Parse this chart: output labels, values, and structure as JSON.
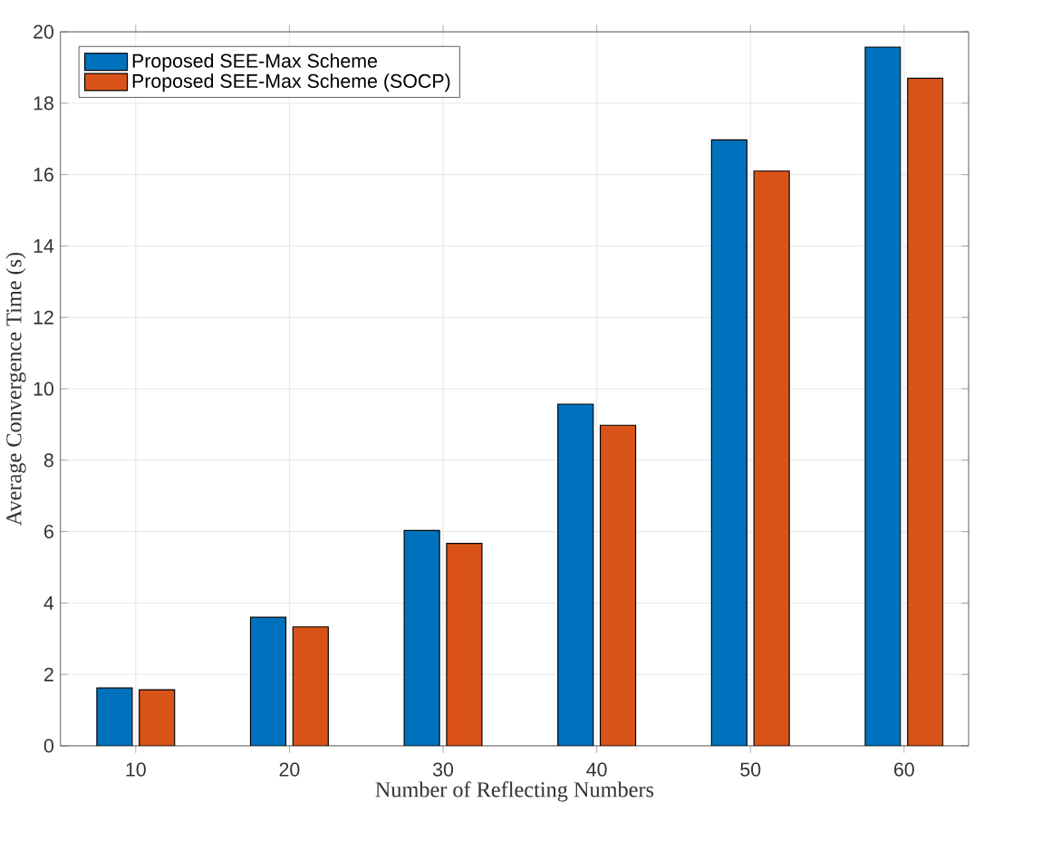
{
  "chart_data": {
    "type": "bar",
    "xlabel": "Number of Reflecting Numbers",
    "ylabel": "Average Convergence Time (s)",
    "categories": [
      "10",
      "20",
      "30",
      "40",
      "50",
      "60"
    ],
    "series": [
      {
        "name": "Proposed SEE-Max Scheme",
        "color": "#0072bd",
        "values": [
          1.62,
          3.6,
          6.03,
          9.57,
          16.97,
          19.57
        ]
      },
      {
        "name": "Proposed SEE-Max Scheme (SOCP)",
        "color": "#d95319",
        "values": [
          1.57,
          3.33,
          5.67,
          8.98,
          16.1,
          18.7
        ]
      }
    ],
    "ylim": [
      0,
      20
    ],
    "yticks": [
      0,
      2,
      4,
      6,
      8,
      10,
      12,
      14,
      16,
      18,
      20
    ],
    "grid": true,
    "legend": "top left"
  }
}
